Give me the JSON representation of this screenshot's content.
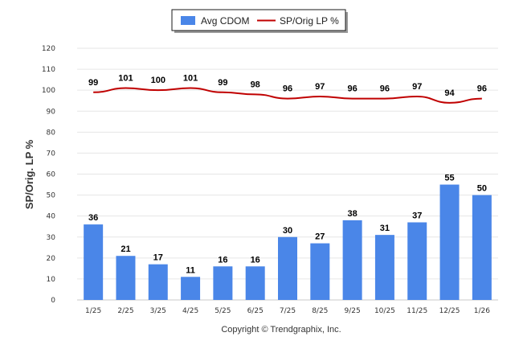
{
  "chart_data": {
    "type": "bar",
    "categories": [
      "1/25",
      "2/25",
      "3/25",
      "4/25",
      "5/25",
      "6/25",
      "7/25",
      "8/25",
      "9/25",
      "10/25",
      "11/25",
      "12/25",
      "1/26"
    ],
    "series": [
      {
        "name": "Avg CDOM",
        "type": "bar",
        "color": "#4a86e8",
        "values": [
          36,
          21,
          17,
          11,
          16,
          16,
          30,
          27,
          38,
          31,
          37,
          55,
          50
        ]
      },
      {
        "name": "SP/Orig LP %",
        "type": "line",
        "color": "#c00000",
        "values": [
          99,
          101,
          100,
          101,
          99,
          98,
          96,
          97,
          96,
          96,
          97,
          94,
          96
        ]
      }
    ],
    "ylabel": "SP/Orig. LP %",
    "ylim": [
      0,
      120
    ],
    "yticks": [
      0,
      10,
      20,
      30,
      40,
      50,
      60,
      70,
      80,
      90,
      100,
      110,
      120
    ],
    "grid": true,
    "legend": "top-center",
    "credit": "Copyright © Trendgraphix, Inc."
  }
}
